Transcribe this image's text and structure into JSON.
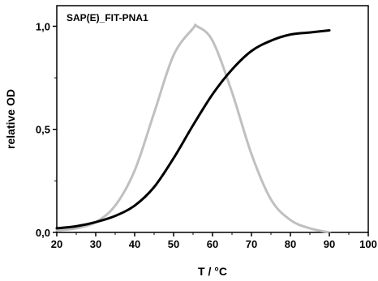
{
  "chart_data": {
    "type": "line",
    "title": "SAP(E)_FIT-PNA1",
    "xlabel": "T / °C",
    "ylabel": "relative OD",
    "xlim": [
      20,
      100
    ],
    "ylim": [
      0.0,
      1.1
    ],
    "x_ticks": [
      20,
      30,
      40,
      50,
      60,
      70,
      80,
      90,
      100
    ],
    "x_tick_labels": [
      "20",
      "30",
      "40",
      "50",
      "60",
      "70",
      "80",
      "90",
      "100"
    ],
    "y_ticks": [
      0.0,
      0.5,
      1.0
    ],
    "y_tick_labels": [
      "0,0",
      "0,5",
      "1,0"
    ],
    "grid": false,
    "series": [
      {
        "color": "#000000",
        "x": [
          20,
          25,
          30,
          35,
          40,
          45,
          50,
          55,
          60,
          65,
          70,
          75,
          80,
          85,
          90
        ],
        "y": [
          0.02,
          0.03,
          0.05,
          0.08,
          0.13,
          0.22,
          0.36,
          0.52,
          0.67,
          0.79,
          0.88,
          0.93,
          0.96,
          0.97,
          0.98
        ]
      },
      {
        "color": "#c0c0c0",
        "x": [
          20,
          25,
          30,
          35,
          40,
          45,
          50,
          55,
          56,
          60,
          65,
          70,
          75,
          80,
          85,
          90
        ],
        "y": [
          0.01,
          0.02,
          0.05,
          0.13,
          0.3,
          0.58,
          0.86,
          0.99,
          1.0,
          0.93,
          0.68,
          0.38,
          0.16,
          0.06,
          0.02,
          0.0
        ]
      }
    ]
  }
}
